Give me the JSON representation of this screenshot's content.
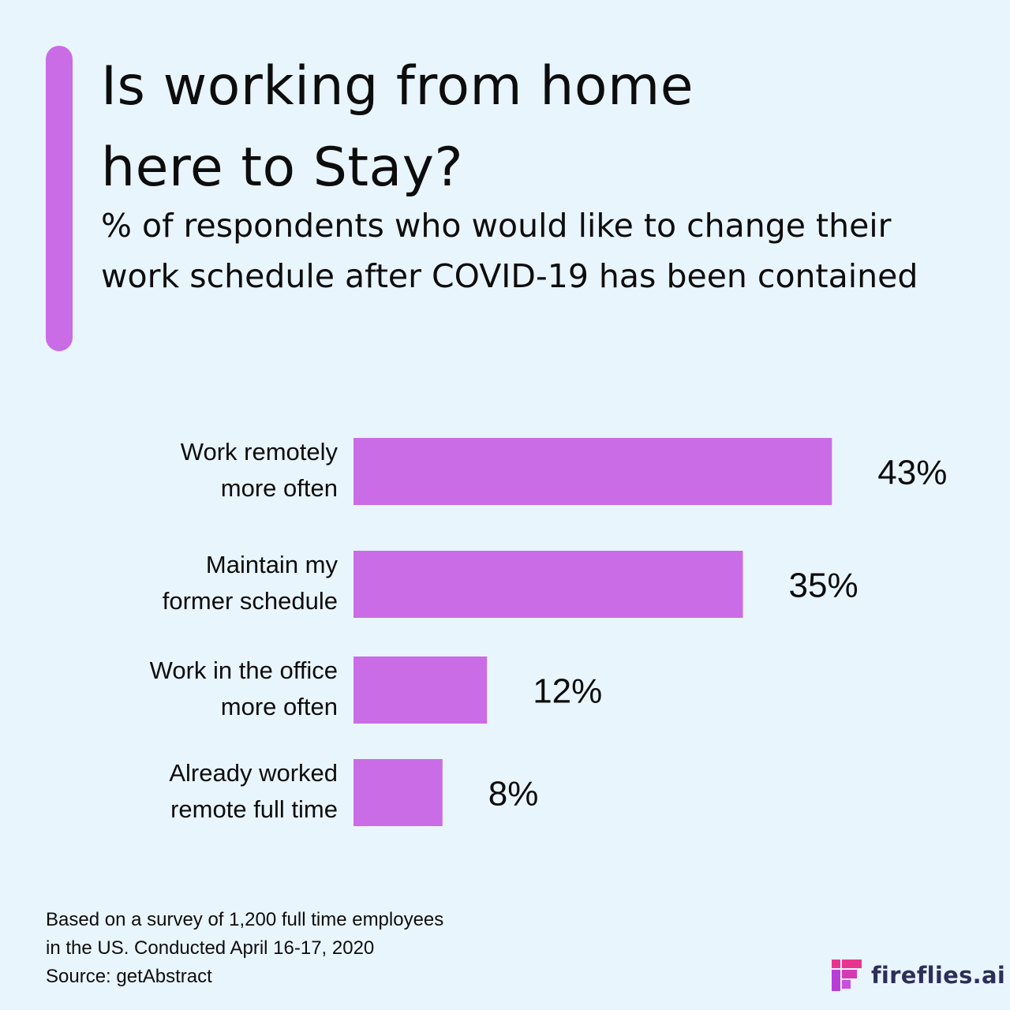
{
  "header": {
    "title_line1": "Is working from home",
    "title_line2": "here to Stay?",
    "subtitle": "% of respondents who would like to change their work schedule after COVID-19 has been contained"
  },
  "colors": {
    "background": "#e9f5fd",
    "accent": "#c96ce6",
    "bar": "#c96ce6",
    "text": "#0d0d0d",
    "brand_text": "#2c2f59"
  },
  "chart_data": {
    "type": "bar",
    "orientation": "horizontal",
    "categories": [
      [
        "Work remotely",
        "more often"
      ],
      [
        "Maintain my",
        "former schedule"
      ],
      [
        "Work in the office",
        "more often"
      ],
      [
        "Already worked",
        "remote full time"
      ]
    ],
    "values": [
      43,
      35,
      12,
      8
    ],
    "value_labels": [
      "43%",
      "35%",
      "12%",
      "8%"
    ],
    "unit": "%",
    "xlabel": "",
    "ylabel": "",
    "grid": false,
    "axes_visible": false
  },
  "footer": {
    "note_line1": "Based on a survey of 1,200 full time employees",
    "note_line2": "in the US. Conducted April 16-17, 2020",
    "source": "Source: getAbstract"
  },
  "brand": {
    "name": "fireflies.ai",
    "icon": "fireflies-logo-icon"
  }
}
